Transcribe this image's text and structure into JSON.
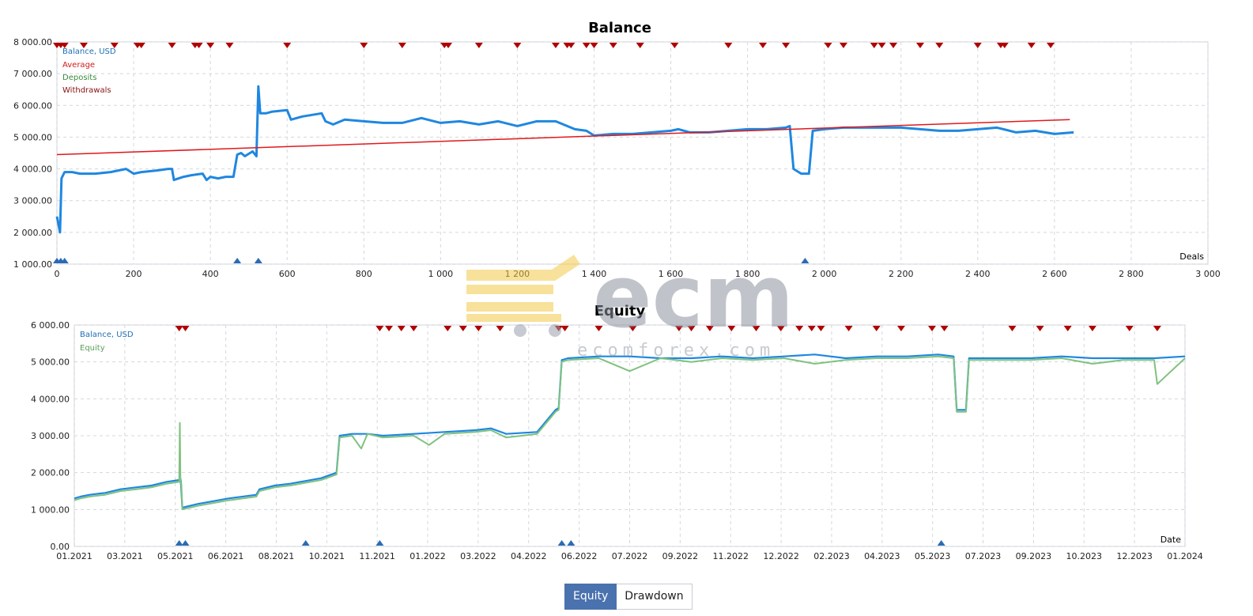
{
  "tabs": {
    "equity_label": "Equity",
    "drawdown_label": "Drawdown"
  },
  "watermark": {
    "brand": "ecm",
    "site": "ecomforex.com"
  },
  "colors": {
    "balance": "#1f87e0",
    "average": "#e0191c",
    "equity": "#7fc27f",
    "marker_red": "#b00000",
    "marker_blue": "#2a6bb5",
    "grid": "#d3d7dc"
  },
  "chart_data": [
    {
      "type": "line",
      "title": "Balance",
      "xlabel": "Deals",
      "xlim": [
        0,
        3000
      ],
      "ylim": [
        1000,
        8000
      ],
      "x_ticks": [
        0,
        200,
        400,
        600,
        800,
        1000,
        1200,
        1400,
        1600,
        1800,
        2000,
        2200,
        2400,
        2600,
        2800,
        3000
      ],
      "x_tick_labels": [
        "0",
        "200",
        "400",
        "600",
        "800",
        "1 000",
        "1 200",
        "1 400",
        "1 600",
        "1 800",
        "2 000",
        "2 200",
        "2 400",
        "2 600",
        "2 800",
        "3 000"
      ],
      "y_ticks": [
        1000,
        2000,
        3000,
        4000,
        5000,
        6000,
        7000,
        8000
      ],
      "y_tick_labels": [
        "1 000.00",
        "2 000.00",
        "3 000.00",
        "4 000.00",
        "5 000.00",
        "6 000.00",
        "7 000.00",
        "8 000.00"
      ],
      "legend": [
        "Balance, USD",
        "Average",
        "Deposits",
        "Withdrawals"
      ],
      "legend_placement": "top-left",
      "grid": true,
      "series": [
        {
          "name": "Balance, USD",
          "x": [
            0,
            8,
            12,
            20,
            25,
            40,
            60,
            100,
            140,
            180,
            200,
            220,
            260,
            290,
            300,
            305,
            330,
            350,
            380,
            390,
            400,
            420,
            440,
            460,
            470,
            480,
            490,
            510,
            520,
            525,
            530,
            545,
            560,
            600,
            610,
            640,
            690,
            700,
            720,
            750,
            800,
            850,
            900,
            950,
            1000,
            1050,
            1100,
            1150,
            1200,
            1250,
            1300,
            1350,
            1380,
            1400,
            1450,
            1500,
            1550,
            1600,
            1620,
            1650,
            1700,
            1750,
            1800,
            1850,
            1900,
            1910,
            1920,
            1940,
            1960,
            1970,
            2000,
            2050,
            2100,
            2150,
            2200,
            2250,
            2300,
            2350,
            2400,
            2450,
            2500,
            2550,
            2600,
            2650
          ],
          "y": [
            2500,
            2000,
            3700,
            3900,
            3900,
            3900,
            3850,
            3850,
            3900,
            4000,
            3850,
            3900,
            3950,
            4000,
            4000,
            3650,
            3750,
            3800,
            3850,
            3650,
            3750,
            3700,
            3750,
            3750,
            4450,
            4500,
            4400,
            4550,
            4400,
            6600,
            5750,
            5750,
            5800,
            5850,
            5550,
            5650,
            5750,
            5500,
            5400,
            5550,
            5500,
            5450,
            5450,
            5600,
            5450,
            5500,
            5400,
            5500,
            5350,
            5500,
            5500,
            5250,
            5200,
            5050,
            5100,
            5100,
            5150,
            5200,
            5250,
            5150,
            5150,
            5200,
            5250,
            5250,
            5300,
            5350,
            4000,
            3850,
            3850,
            5200,
            5250,
            5300,
            5300,
            5300,
            5300,
            5250,
            5200,
            5200,
            5250,
            5300,
            5150,
            5200,
            5100,
            5150
          ]
        },
        {
          "name": "Average",
          "x": [
            0,
            2640
          ],
          "y": [
            4450,
            5550
          ]
        }
      ],
      "deposits_x": [
        0,
        10,
        20,
        470,
        525,
        1950
      ],
      "withdrawals_x": [
        0,
        10,
        20,
        70,
        150,
        210,
        220,
        300,
        360,
        370,
        400,
        450,
        600,
        800,
        900,
        1010,
        1020,
        1100,
        1200,
        1300,
        1330,
        1340,
        1380,
        1400,
        1450,
        1520,
        1610,
        1750,
        1840,
        1900,
        2010,
        2050,
        2130,
        2150,
        2180,
        2250,
        2300,
        2400,
        2460,
        2470,
        2540,
        2590
      ]
    },
    {
      "type": "line",
      "title": "Equity",
      "xlabel": "Date",
      "xlim": [
        "01.2021",
        "01.2024"
      ],
      "ylim": [
        0,
        6000
      ],
      "x_tick_labels": [
        "01.2021",
        "03.2021",
        "05.2021",
        "06.2021",
        "08.2021",
        "10.2021",
        "11.2021",
        "01.2022",
        "03.2022",
        "04.2022",
        "06.2022",
        "07.2022",
        "09.2022",
        "11.2022",
        "12.2022",
        "02.2023",
        "04.2023",
        "05.2023",
        "07.2023",
        "09.2023",
        "10.2023",
        "12.2023",
        "01.2024"
      ],
      "y_ticks": [
        0,
        1000,
        2000,
        3000,
        4000,
        5000,
        6000
      ],
      "y_tick_labels": [
        "0.00",
        "1 000.00",
        "2 000.00",
        "3 000.00",
        "4 000.00",
        "5 000.00",
        "6 000.00"
      ],
      "legend": [
        "Balance, USD",
        "Equity"
      ],
      "legend_placement": "top-left",
      "grid": true,
      "series": [
        {
          "name": "Balance, USD",
          "x": [
            0,
            0.2,
            0.5,
            1,
            1.5,
            2,
            2.5,
            3,
            3.4,
            3.42,
            3.45,
            3.5,
            4,
            5,
            5.9,
            6,
            6.5,
            7,
            8,
            8.5,
            8.6,
            9,
            9.5,
            10,
            11,
            12,
            13,
            13.5,
            14,
            15,
            15.6,
            15.7,
            15.8,
            16,
            17,
            18,
            19,
            20,
            21,
            22,
            23,
            24,
            25,
            26,
            27,
            28,
            28.5,
            28.6,
            28.9,
            29,
            30,
            31,
            32,
            33,
            34,
            35,
            36
          ],
          "y": [
            1300,
            1350,
            1400,
            1450,
            1550,
            1600,
            1650,
            1750,
            1800,
            1900,
            1800,
            1050,
            1150,
            1300,
            1400,
            1550,
            1650,
            1700,
            1850,
            2000,
            3000,
            3050,
            3050,
            3000,
            3050,
            3100,
            3150,
            3200,
            3050,
            3100,
            3700,
            3750,
            5050,
            5100,
            5150,
            5150,
            5100,
            5100,
            5150,
            5100,
            5150,
            5200,
            5100,
            5150,
            5150,
            5200,
            5150,
            3700,
            3700,
            5100,
            5100,
            5100,
            5150,
            5100,
            5100,
            5100,
            5150
          ]
        },
        {
          "name": "Equity",
          "x": [
            0,
            0.2,
            0.5,
            1,
            1.5,
            2,
            2.5,
            3,
            3.4,
            3.42,
            3.44,
            3.47,
            3.5,
            4,
            5,
            5.9,
            6,
            6.5,
            7,
            8,
            8.5,
            8.6,
            9,
            9.3,
            9.5,
            10,
            11,
            11.5,
            12,
            13,
            13.5,
            14,
            15,
            15.6,
            15.7,
            15.8,
            16,
            17,
            18,
            19,
            20,
            21,
            22,
            23,
            24,
            25,
            26,
            27,
            28,
            28.5,
            28.6,
            28.9,
            29,
            30,
            31,
            32,
            33,
            34,
            35,
            35.1,
            36
          ],
          "y": [
            1250,
            1300,
            1350,
            1400,
            1500,
            1550,
            1600,
            1700,
            1750,
            3350,
            1700,
            1700,
            1000,
            1100,
            1250,
            1350,
            1500,
            1600,
            1650,
            1800,
            1950,
            2950,
            3000,
            2650,
            3050,
            2950,
            3000,
            2750,
            3050,
            3100,
            3150,
            2950,
            3050,
            3650,
            3700,
            5000,
            5050,
            5100,
            4750,
            5100,
            5000,
            5100,
            5050,
            5100,
            4950,
            5050,
            5100,
            5100,
            5150,
            5100,
            3650,
            3650,
            5050,
            5050,
            5050,
            5100,
            4950,
            5050,
            5050,
            4400,
            5100
          ]
        }
      ],
      "deposits_x": [
        3.4,
        3.6,
        7.5,
        9.9,
        15.8,
        16.1,
        28.1
      ],
      "withdrawals_x": [
        3.4,
        3.6,
        9.9,
        10.2,
        10.6,
        11,
        12.1,
        12.6,
        13.1,
        13.8,
        15.7,
        15.9,
        17,
        18.1,
        19.6,
        20,
        20.6,
        21.3,
        22.1,
        22.9,
        23.5,
        23.9,
        24.2,
        25.1,
        26,
        26.8,
        27.8,
        28.2,
        30.4,
        31.3,
        32.2,
        33,
        34.2,
        35.1
      ]
    }
  ]
}
